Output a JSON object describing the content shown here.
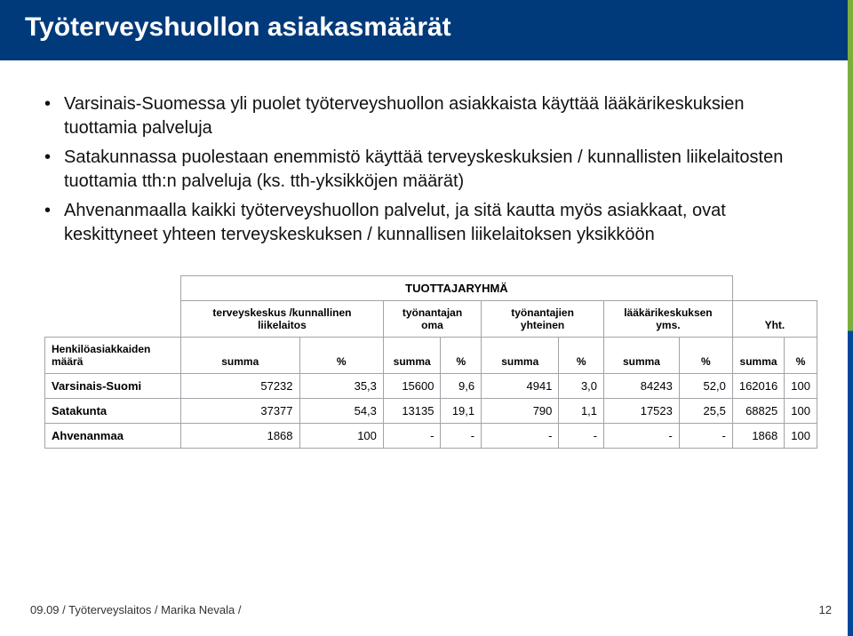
{
  "header": {
    "title": "Työterveyshuollon asiakasmäärät"
  },
  "bullets": [
    "Varsinais-Suomessa yli puolet työterveyshuollon asiakkaista käyttää lääkärikeskuksien tuottamia palveluja",
    "Satakunnassa puolestaan enemmistö käyttää terveyskeskuksien / kunnallisten liikelaitosten tuottamia tth:n palveluja (ks. tth-yksikköjen määrät)",
    "Ahvenanmaalla kaikki työterveyshuollon palvelut, ja sitä kautta myös asiakkaat, ovat keskittyneet yhteen terveyskeskuksen / kunnallisen liikelaitoksen yksikköön"
  ],
  "table": {
    "group_header": "TUOTTAJARYHMÄ",
    "rowhead_line1": "Henkilöasiakkaiden",
    "rowhead_line2": "määrä",
    "cols": [
      {
        "label": "terveyskeskus /kunnallinen liikelaitos"
      },
      {
        "label": "työnantajan oma"
      },
      {
        "label": "työnantajien yhteinen"
      },
      {
        "label": "lääkärikeskuksen yms."
      },
      {
        "label": "Yht."
      }
    ],
    "sub": {
      "sum": "summa",
      "pct": "%"
    },
    "rows": [
      {
        "label": "Varsinais-Suomi",
        "cells": [
          "57232",
          "35,3",
          "15600",
          "9,6",
          "4941",
          "3,0",
          "84243",
          "52,0",
          "162016",
          "100"
        ]
      },
      {
        "label": "Satakunta",
        "cells": [
          "37377",
          "54,3",
          "13135",
          "19,1",
          "790",
          "1,1",
          "17523",
          "25,5",
          "68825",
          "100"
        ]
      },
      {
        "label": "Ahvenanmaa",
        "cells": [
          "1868",
          "100",
          "-",
          "-",
          "-",
          "-",
          "-",
          "-",
          "1868",
          "100"
        ]
      }
    ]
  },
  "footer": {
    "text": "09.09 / Työterveyslaitos / Marika Nevala /",
    "page": "12"
  }
}
